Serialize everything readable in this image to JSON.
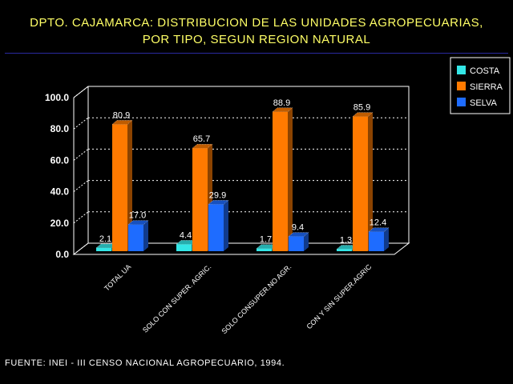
{
  "title_line1": "DPTO. CAJAMARCA: DISTRIBUCION DE LAS UNIDADES AGROPECUARIAS,",
  "title_line2": "POR TIPO, SEGUN REGION NATURAL",
  "source": "FUENTE: INEI - III CENSO NACIONAL AGROPECUARIO, 1994.",
  "colors": {
    "background": "#000000",
    "title": "#ffff66",
    "grid": "#ffffff"
  },
  "chart_data": {
    "type": "bar",
    "categories": [
      "TOTAL UA",
      "SOLO CON SUPER. AGRIC.",
      "SOLO CONSUPER.NO AGR.",
      "CON Y SIN SUPER.AGRIC"
    ],
    "series": [
      {
        "name": "COSTA",
        "color": "#33e6e6",
        "values": [
          2.1,
          4.4,
          1.7,
          1.3
        ]
      },
      {
        "name": "SIERRA",
        "color": "#ff7a00",
        "values": [
          80.9,
          65.7,
          88.9,
          85.9
        ]
      },
      {
        "name": "SELVA",
        "color": "#1e6cff",
        "values": [
          17.0,
          29.9,
          9.4,
          12.4
        ]
      }
    ],
    "value_labels": [
      [
        "2.1",
        "80.9",
        "17.0"
      ],
      [
        "4.4",
        "65.7",
        "29.9"
      ],
      [
        "1.7",
        "88.9",
        "9.4"
      ],
      [
        "1.3",
        "85.9",
        "12.4"
      ]
    ],
    "y_ticks": [
      "0.0",
      "20.0",
      "40.0",
      "60.0",
      "80.0",
      "100.0"
    ],
    "ylim": [
      0,
      100
    ],
    "grid": true,
    "legend": "top-right"
  }
}
